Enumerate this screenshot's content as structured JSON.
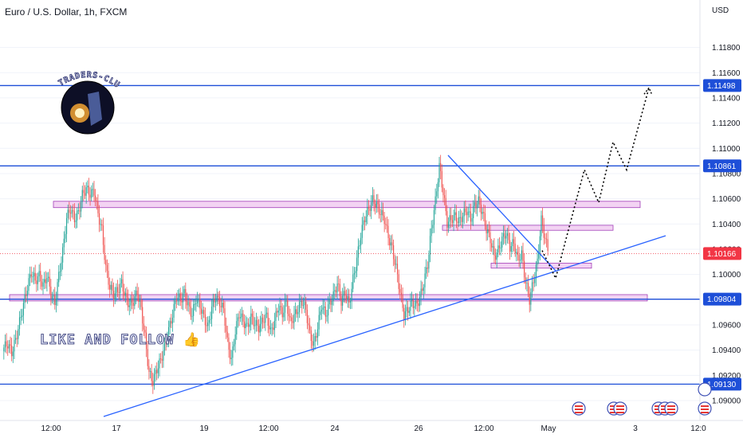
{
  "header": {
    "title": "Euro / U.S. Dollar, 1h, FXCM",
    "currency": "USD"
  },
  "watermark": {
    "logo_text": "TRADERS-CLUB",
    "caption": "LIKE AND FOLLOW 👍"
  },
  "colors": {
    "up": "#26a69a",
    "down": "#ef5350",
    "level": "#1e4fd8",
    "zone_fill": "#f3d3f3",
    "zone_stroke": "#a23fb8",
    "last_price": "#f23645",
    "trend": "#2962ff"
  },
  "chart_data": {
    "type": "candlestick",
    "symbol": "Euro / U.S. Dollar",
    "timeframe": "1h",
    "source": "FXCM",
    "ylim": [
      1.0888,
      1.1205
    ],
    "y_ticks": [
      1.09,
      1.092,
      1.094,
      1.096,
      1.098,
      1.1,
      1.102,
      1.104,
      1.106,
      1.108,
      1.11,
      1.112,
      1.114,
      1.116,
      1.118
    ],
    "y_tick_labels": [
      "1.09000",
      "1.09200",
      "1.09400",
      "1.09600",
      "1.09800",
      "1.10000",
      "1.10200",
      "1.10400",
      "1.10600",
      "1.10800",
      "1.11000",
      "1.11200",
      "1.11400",
      "1.11600",
      "1.11800"
    ],
    "x_tick_labels": [
      "12:00",
      "17",
      "19",
      "12:00",
      "24",
      "26",
      "12:00",
      "May",
      "3",
      "12:0"
    ],
    "horizontal_levels": [
      1.11498,
      1.10861,
      1.09804,
      1.0913
    ],
    "level_labels": [
      "1.11498",
      "1.10861",
      "1.09804",
      "1.09130"
    ],
    "last_price": 1.10166,
    "last_price_label": "1.10166",
    "zones": [
      [
        1.1053,
        1.1058
      ],
      [
        1.1035,
        1.1039
      ],
      [
        1.1005,
        1.1009
      ],
      [
        1.0979,
        1.0984
      ]
    ],
    "projection": [
      1.0997,
      1.1022,
      1.1083,
      1.1057,
      1.1105,
      1.1083,
      1.1148
    ],
    "candles_close_path": [
      1.0942,
      1.0945,
      1.0938,
      1.0948,
      1.0962,
      1.0976,
      1.099,
      1.1002,
      1.0995,
      1.0999,
      1.0991,
      1.0999,
      1.0985,
      1.0977,
      1.0999,
      1.1018,
      1.1045,
      1.1052,
      1.1044,
      1.1049,
      1.1063,
      1.1068,
      1.1064,
      1.1066,
      1.1048,
      1.1035,
      1.1005,
      1.099,
      1.0984,
      1.0987,
      1.0993,
      1.0982,
      1.0976,
      1.0979,
      1.0986,
      1.0972,
      1.095,
      1.0922,
      1.0915,
      1.0925,
      1.0932,
      1.0943,
      1.0956,
      1.0968,
      1.0983,
      1.098,
      1.0985,
      1.0975,
      1.0968,
      1.0981,
      1.0975,
      1.0966,
      1.0958,
      1.0974,
      1.0982,
      1.0978,
      1.0972,
      1.0946,
      1.0932,
      1.0955,
      1.0969,
      1.0963,
      1.0958,
      1.0966,
      1.0961,
      1.0958,
      1.0964,
      1.0967,
      1.0954,
      1.0963,
      1.0975,
      1.0969,
      1.0978,
      1.0962,
      1.0967,
      1.0973,
      1.0979,
      1.0972,
      1.0952,
      1.0944,
      1.0958,
      1.0976,
      1.0968,
      1.0977,
      1.0983,
      1.0993,
      1.0979,
      1.0986,
      1.0976,
      1.0996,
      1.1012,
      1.1032,
      1.1045,
      1.1052,
      1.1059,
      1.1055,
      1.1049,
      1.1044,
      1.103,
      1.102,
      1.1005,
      1.0986,
      1.0968,
      1.0972,
      1.0978,
      1.0975,
      1.0981,
      1.0993,
      1.1008,
      1.1036,
      1.1058,
      1.1086,
      1.1065,
      1.1041,
      1.1044,
      1.1046,
      1.1042,
      1.1047,
      1.1051,
      1.1044,
      1.1055,
      1.1058,
      1.1049,
      1.1036,
      1.1028,
      1.1014,
      1.1019,
      1.1028,
      1.1033,
      1.1022,
      1.1025,
      1.1012,
      1.1016,
      1.0994,
      1.098,
      1.0995,
      1.101,
      1.1043,
      1.1028,
      1.1016
    ]
  }
}
